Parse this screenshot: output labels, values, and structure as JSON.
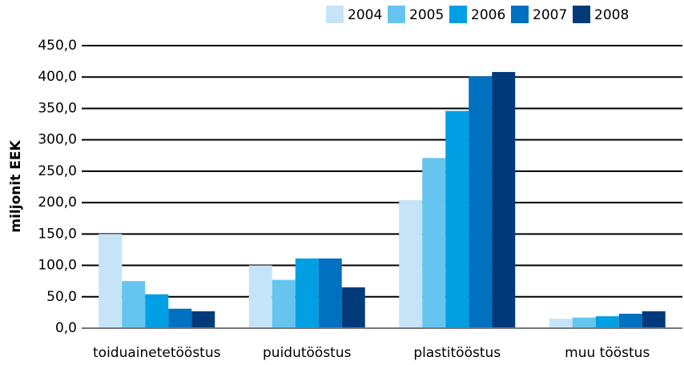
{
  "chart_data": {
    "type": "bar",
    "y_label": "miljonit EEK",
    "categories": [
      "toiduainetetööstus",
      "puidutööstus",
      "plastitööstus",
      "muu tööstus"
    ],
    "series": [
      {
        "name": "2004",
        "color": "#c6e4f7",
        "values": [
          150,
          100,
          204,
          15
        ]
      },
      {
        "name": "2005",
        "color": "#66c5ee",
        "values": [
          75,
          77,
          271,
          17
        ]
      },
      {
        "name": "2006",
        "color": "#009fe3",
        "values": [
          54,
          111,
          346,
          19
        ]
      },
      {
        "name": "2007",
        "color": "#0070c0",
        "values": [
          31,
          111,
          401,
          23
        ]
      },
      {
        "name": "2008",
        "color": "#003a7a",
        "values": [
          27,
          65,
          408,
          27
        ]
      }
    ],
    "ylim": [
      0,
      450
    ],
    "yticks": [
      {
        "value": 0,
        "label": "0,0"
      },
      {
        "value": 50,
        "label": "50,0"
      },
      {
        "value": 100,
        "label": "100,0"
      },
      {
        "value": 150,
        "label": "150,0"
      },
      {
        "value": 200,
        "label": "200,0"
      },
      {
        "value": 250,
        "label": "250,0"
      },
      {
        "value": 300,
        "label": "300,0"
      },
      {
        "value": 350,
        "label": "350,0"
      },
      {
        "value": 400,
        "label": "400,0"
      },
      {
        "value": 450,
        "label": "450,0"
      }
    ],
    "grid": true,
    "legend": "top-right"
  }
}
